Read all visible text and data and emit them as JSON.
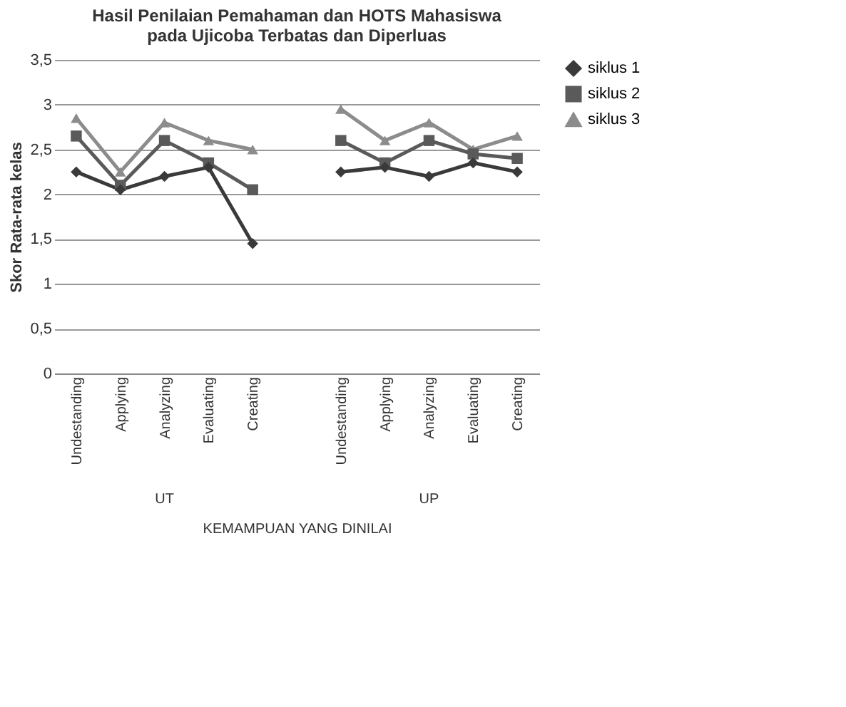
{
  "chart_data": {
    "type": "line",
    "title": "Hasil Penilaian Pemahaman dan HOTS Mahasiswa pada Ujicoba Terbatas dan Diperluas",
    "xlabel": "KEMAMPUAN YANG DINILAI",
    "ylabel": "Skor Rata-rata kelas",
    "categories": [
      "Undestanding",
      "Applying",
      "Analyzing",
      "Evaluating",
      "Creating",
      null,
      "Undestanding",
      "Applying",
      "Analyzing",
      "Evaluating",
      "Creating"
    ],
    "annotations": [
      "UT",
      "UP"
    ],
    "series": [
      {
        "name": "siklus 1",
        "color": "#3a3a3a",
        "marker": "diamond",
        "values": [
          2.25,
          2.05,
          2.2,
          2.3,
          1.45,
          null,
          2.25,
          2.3,
          2.2,
          2.35,
          2.25
        ]
      },
      {
        "name": "siklus 2",
        "color": "#5a5a5a",
        "marker": "square",
        "values": [
          2.65,
          2.1,
          2.6,
          2.35,
          2.05,
          null,
          2.6,
          2.35,
          2.6,
          2.45,
          2.4
        ]
      },
      {
        "name": "siklus 3",
        "color": "#8c8c8c",
        "marker": "triangle",
        "values": [
          2.85,
          2.25,
          2.8,
          2.6,
          2.5,
          null,
          2.95,
          2.6,
          2.8,
          2.5,
          2.65
        ]
      }
    ],
    "ylim": [
      0,
      3.5
    ],
    "yticks": [
      0,
      {
        "value": 0.5,
        "label": "0,5"
      },
      1,
      {
        "value": 1.5,
        "label": "1,5"
      },
      2,
      {
        "value": 2.5,
        "label": "2,5"
      },
      3,
      {
        "value": 3.5,
        "label": "3,5"
      }
    ],
    "grid": "y",
    "legend": "right"
  }
}
